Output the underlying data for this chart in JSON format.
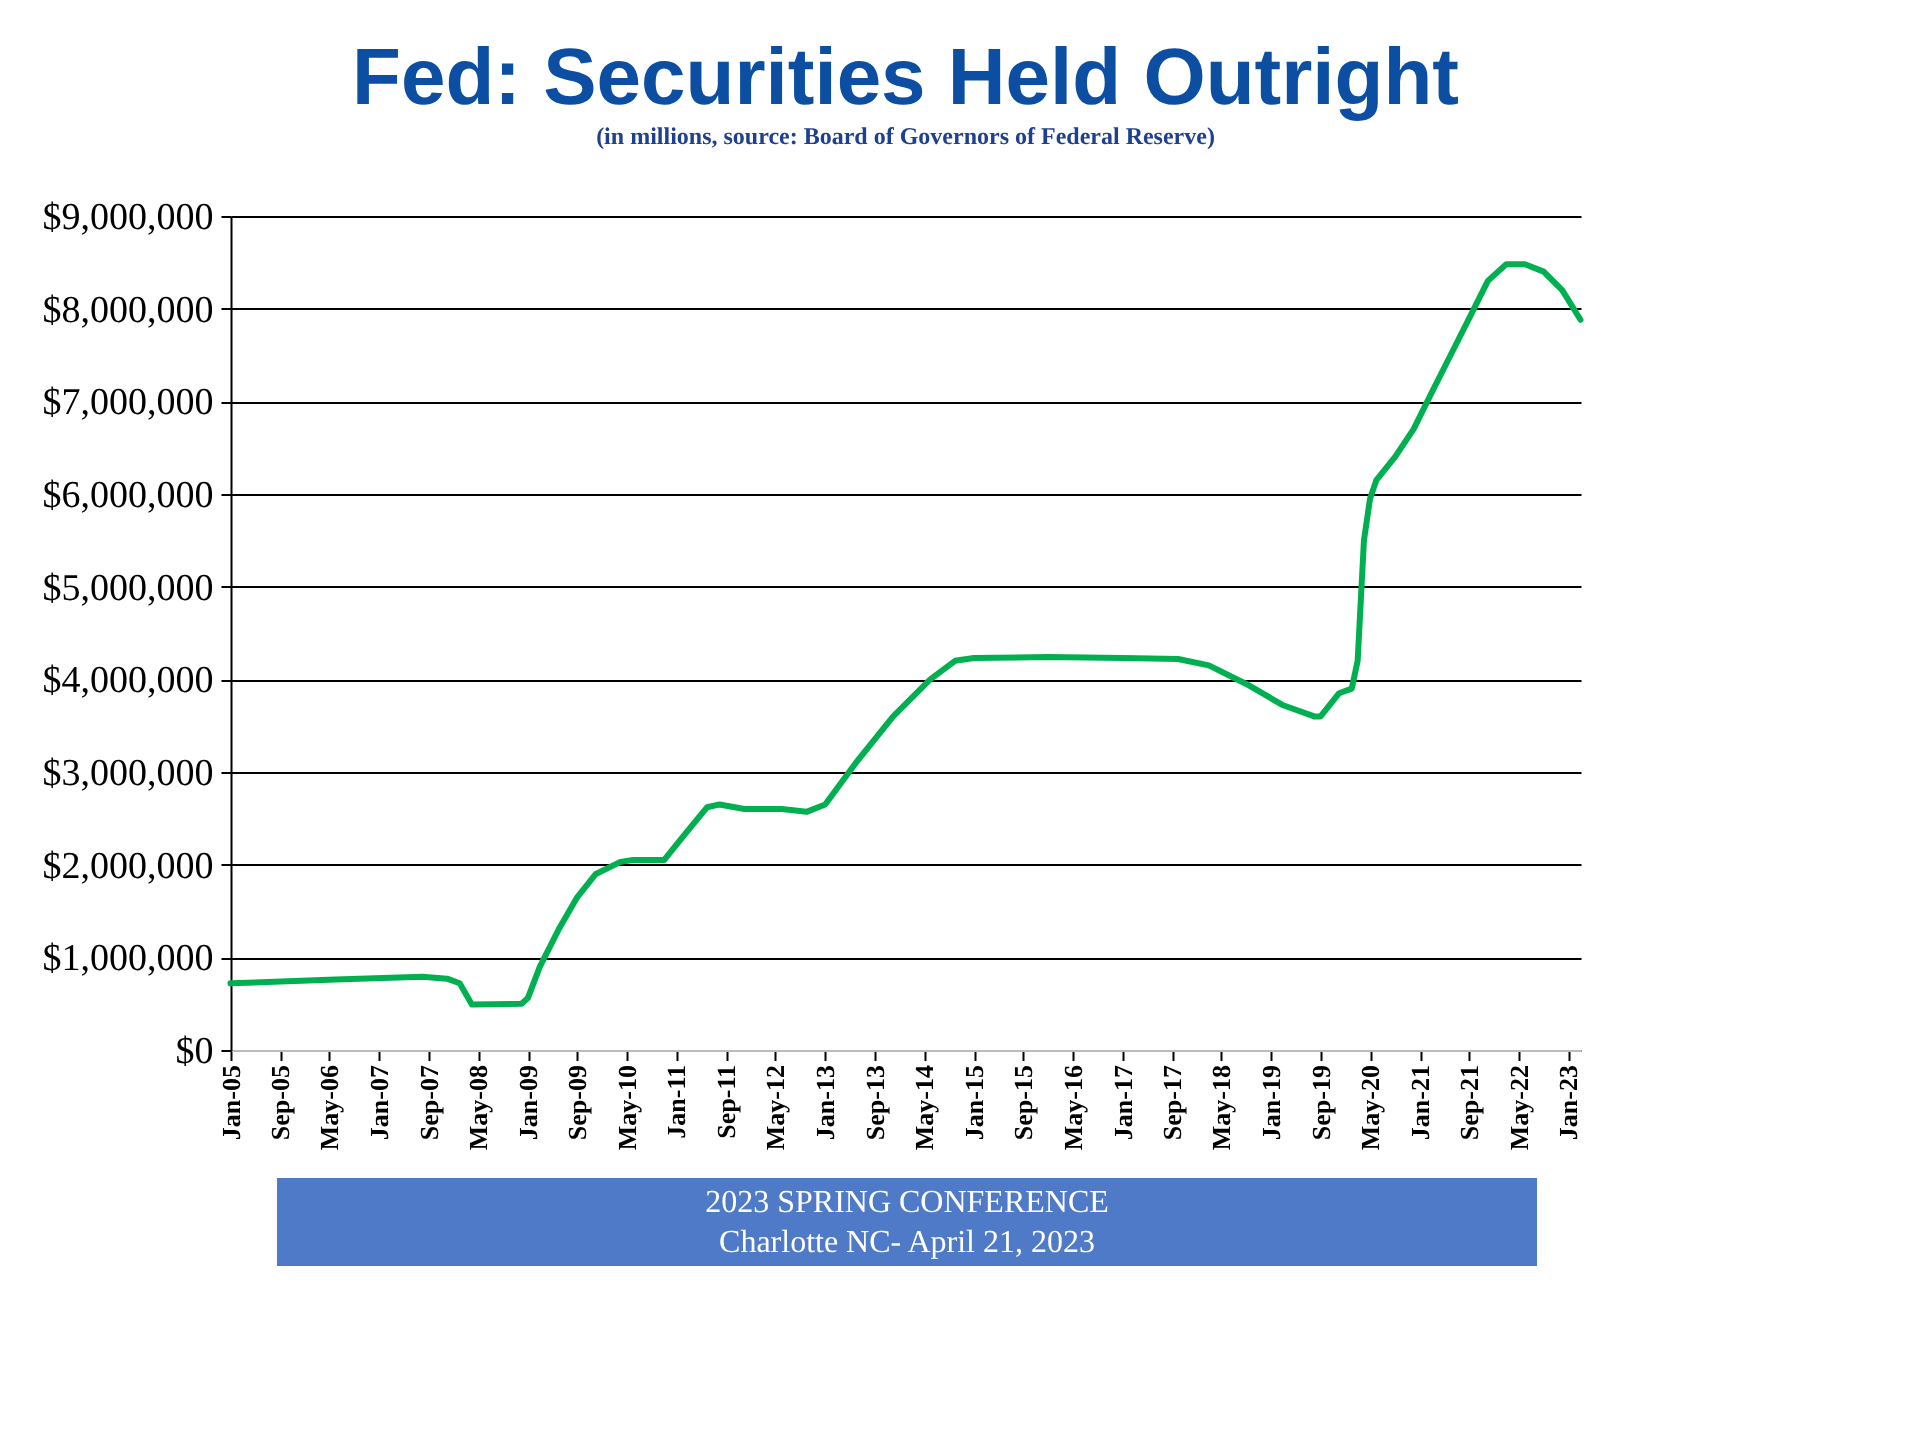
{
  "chart_data": {
    "type": "line",
    "title": "Fed: Securities Held Outright",
    "subtitle": "(in millions, source: Board of Governors of Federal Reserve)",
    "x": [
      "2005-01",
      "2006-06",
      "2007-08",
      "2007-12",
      "2008-02",
      "2008-04",
      "2008-12",
      "2009-01",
      "2009-03",
      "2009-06",
      "2009-09",
      "2009-12",
      "2010-04",
      "2010-06",
      "2010-11",
      "2011-02",
      "2011-06",
      "2011-08",
      "2011-12",
      "2012-06",
      "2012-10",
      "2013-01",
      "2013-06",
      "2013-12",
      "2014-06",
      "2014-10",
      "2015-01",
      "2016-01",
      "2017-01",
      "2017-10",
      "2018-03",
      "2018-09",
      "2019-03",
      "2019-08",
      "2019-09",
      "2019-12",
      "2020-02",
      "2020-03",
      "2020-04",
      "2020-05",
      "2020-06",
      "2020-09",
      "2020-12",
      "2021-03",
      "2021-06",
      "2021-09",
      "2021-12",
      "2022-03",
      "2022-06",
      "2022-09",
      "2022-12",
      "2023-03"
    ],
    "series": [
      {
        "color": "#00b050",
        "values": [
          720000,
          760000,
          790000,
          770000,
          720000,
          490000,
          500000,
          560000,
          900000,
          1300000,
          1650000,
          1900000,
          2030000,
          2050000,
          2050000,
          2300000,
          2620000,
          2650000,
          2600000,
          2600000,
          2570000,
          2650000,
          3100000,
          3600000,
          4000000,
          4200000,
          4230000,
          4240000,
          4230000,
          4220000,
          4150000,
          3950000,
          3720000,
          3600000,
          3600000,
          3850000,
          3900000,
          4200000,
          5500000,
          5950000,
          6150000,
          6400000,
          6700000,
          7100000,
          7500000,
          7900000,
          8300000,
          8480000,
          8480000,
          8400000,
          8200000,
          7880000
        ]
      }
    ],
    "xlim": [
      "2005-01",
      "2023-03"
    ],
    "xticks": [
      {
        "value": "2005-01",
        "label": "Jan-05"
      },
      {
        "value": "2005-09",
        "label": "Sep-05"
      },
      {
        "value": "2006-05",
        "label": "May-06"
      },
      {
        "value": "2007-01",
        "label": "Jan-07"
      },
      {
        "value": "2007-09",
        "label": "Sep-07"
      },
      {
        "value": "2008-05",
        "label": "May-08"
      },
      {
        "value": "2009-01",
        "label": "Jan-09"
      },
      {
        "value": "2009-09",
        "label": "Sep-09"
      },
      {
        "value": "2010-05",
        "label": "May-10"
      },
      {
        "value": "2011-01",
        "label": "Jan-11"
      },
      {
        "value": "2011-09",
        "label": "Sep-11"
      },
      {
        "value": "2012-05",
        "label": "May-12"
      },
      {
        "value": "2013-01",
        "label": "Jan-13"
      },
      {
        "value": "2013-09",
        "label": "Sep-13"
      },
      {
        "value": "2014-05",
        "label": "May-14"
      },
      {
        "value": "2015-01",
        "label": "Jan-15"
      },
      {
        "value": "2015-09",
        "label": "Sep-15"
      },
      {
        "value": "2016-05",
        "label": "May-16"
      },
      {
        "value": "2017-01",
        "label": "Jan-17"
      },
      {
        "value": "2017-09",
        "label": "Sep-17"
      },
      {
        "value": "2018-05",
        "label": "May-18"
      },
      {
        "value": "2019-01",
        "label": "Jan-19"
      },
      {
        "value": "2019-09",
        "label": "Sep-19"
      },
      {
        "value": "2020-05",
        "label": "May-20"
      },
      {
        "value": "2021-01",
        "label": "Jan-21"
      },
      {
        "value": "2021-09",
        "label": "Sep-21"
      },
      {
        "value": "2022-05",
        "label": "May-22"
      },
      {
        "value": "2023-01",
        "label": "Jan-23"
      }
    ],
    "ylim": [
      0,
      9000000
    ],
    "yticks": [
      {
        "value": 0,
        "label": "$0"
      },
      {
        "value": 1000000,
        "label": "$1,000,000"
      },
      {
        "value": 2000000,
        "label": "$2,000,000"
      },
      {
        "value": 3000000,
        "label": "$3,000,000"
      },
      {
        "value": 4000000,
        "label": "$4,000,000"
      },
      {
        "value": 5000000,
        "label": "$5,000,000"
      },
      {
        "value": 6000000,
        "label": "$6,000,000"
      },
      {
        "value": 7000000,
        "label": "$7,000,000"
      },
      {
        "value": 8000000,
        "label": "$8,000,000"
      },
      {
        "value": 9000000,
        "label": "$9,000,000"
      }
    ],
    "grid": "y",
    "legend": false,
    "marker": "none",
    "line_style": "solid",
    "annotations": [
      "2023 SPRING CONFERENCE",
      "Charlotte NC- April 21, 2023"
    ]
  }
}
